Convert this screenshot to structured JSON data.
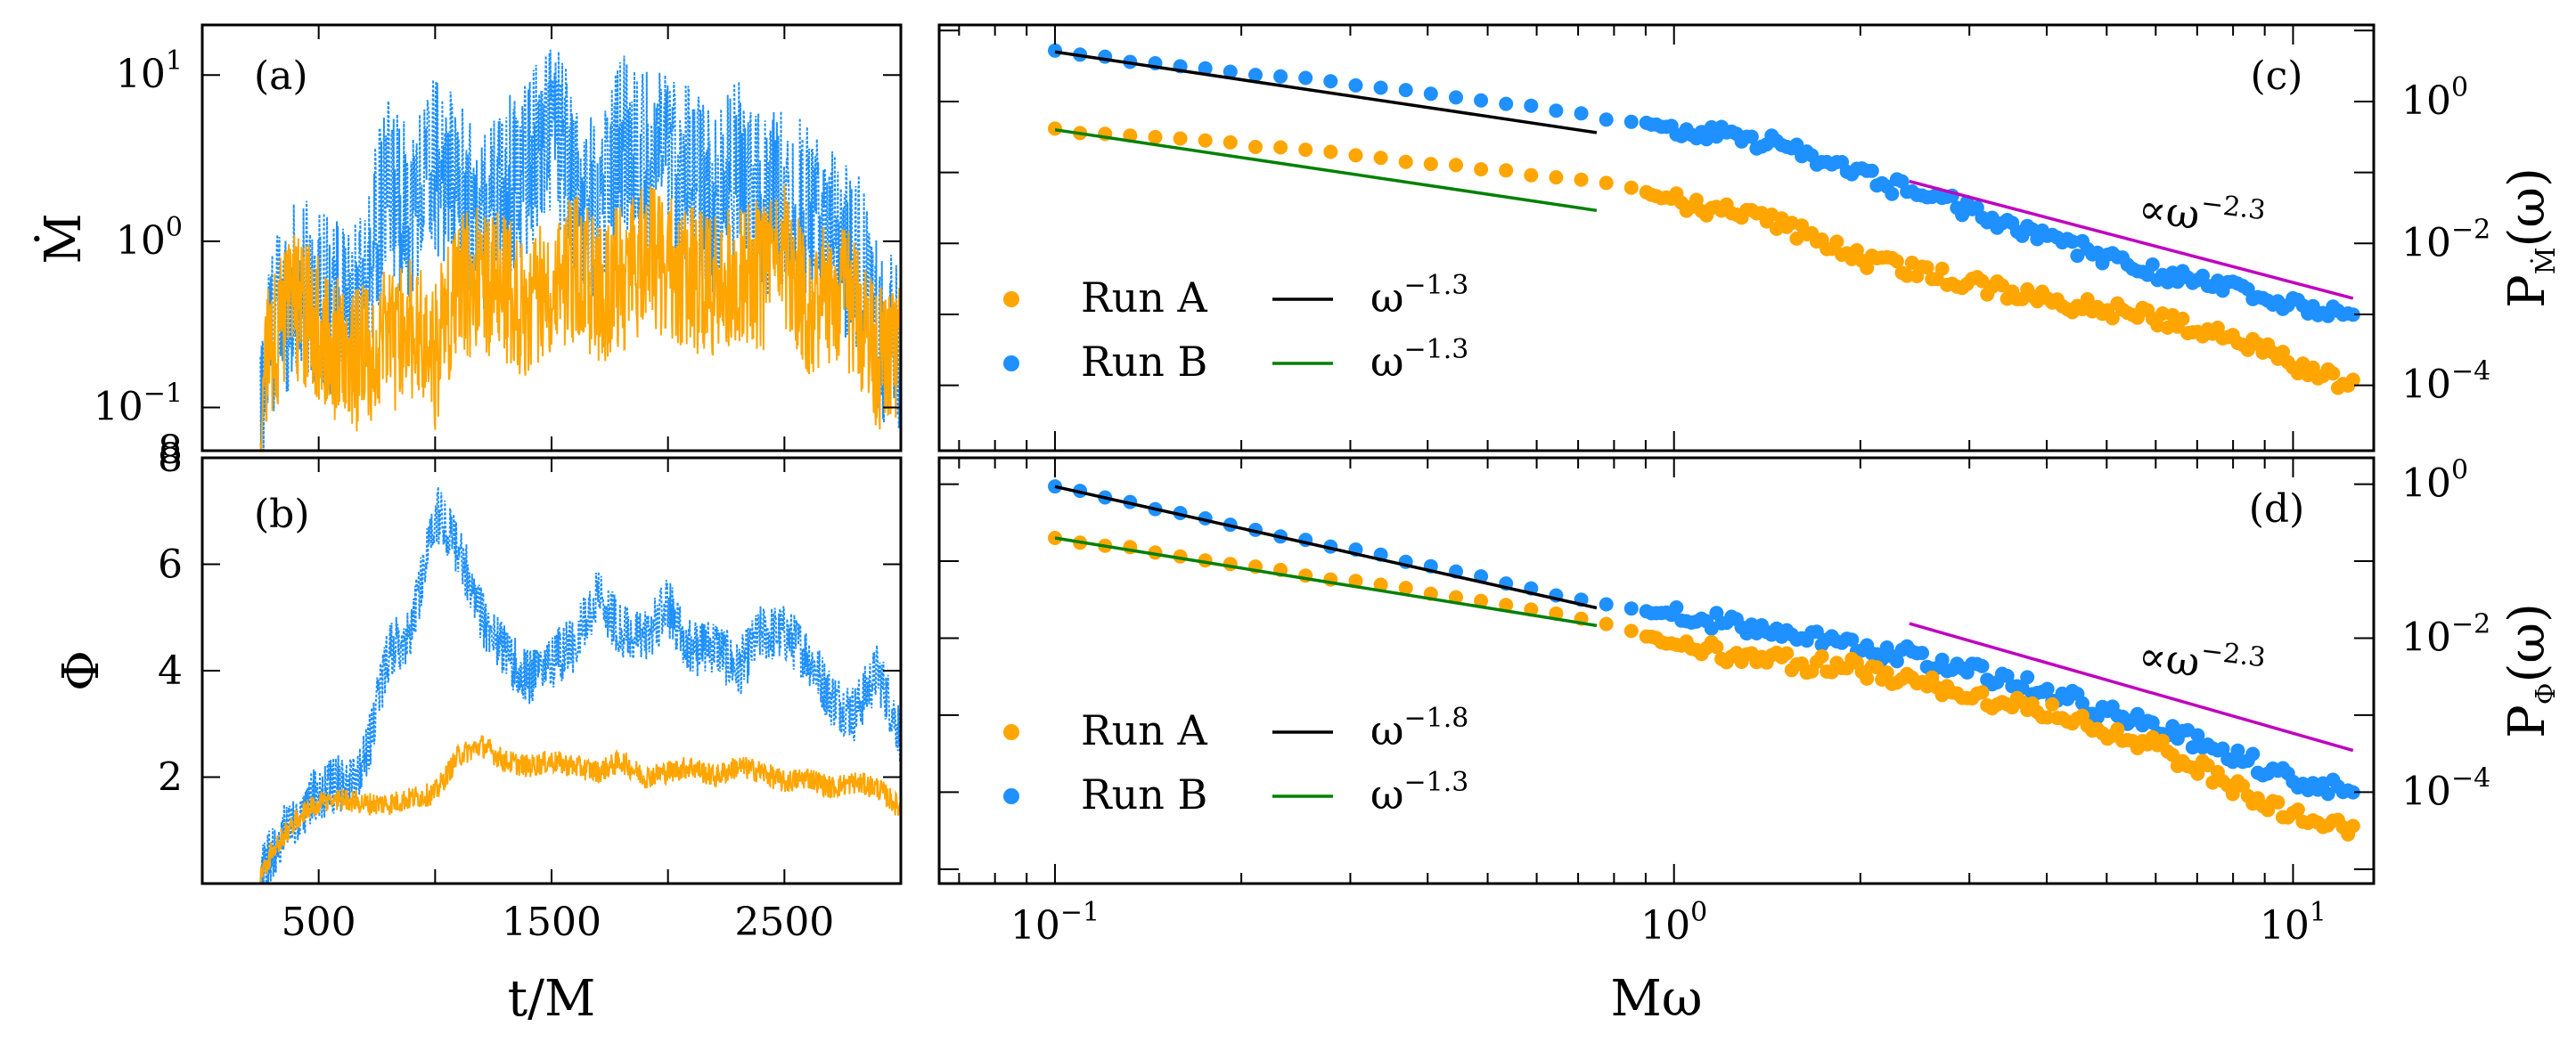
{
  "colors": {
    "run_a": "#FFA500",
    "run_b": "#1E90FF",
    "fit_black": "#000000",
    "fit_green": "#008000",
    "ref_magenta": "#C000C0"
  },
  "chart_data": [
    {
      "id": "a",
      "type": "line",
      "panel_label": "(a)",
      "ylabel": "Ṁ",
      "xlabel": "",
      "yscale": "log",
      "xlim": [
        0,
        3000
      ],
      "ylim": [
        0.055,
        20
      ],
      "y_tick_labels": [
        "10^1",
        "10^0",
        "10^-1",
        "8"
      ],
      "series": [
        {
          "color": "#1E90FF",
          "style": "dotted",
          "x": [
            250,
            300,
            400,
            500,
            600,
            700,
            800,
            900,
            1000,
            1100,
            1200,
            1300,
            1400,
            1500,
            1600,
            1700,
            1800,
            1900,
            2000,
            2100,
            2200,
            2300,
            2400,
            2500,
            2600,
            2700,
            2800,
            2900,
            3000
          ],
          "values": [
            0.08,
            0.3,
            0.5,
            0.5,
            0.35,
            0.4,
            2.0,
            1.5,
            3.0,
            2.0,
            1.2,
            2.0,
            3.0,
            5.0,
            2.0,
            1.5,
            4.0,
            3.0,
            3.0,
            2.5,
            1.5,
            3.0,
            1.5,
            2.0,
            1.5,
            1.0,
            0.8,
            0.3,
            0.2
          ]
        },
        {
          "color": "#FFA500",
          "style": "solid",
          "x": [
            250,
            300,
            400,
            500,
            600,
            700,
            800,
            900,
            1000,
            1100,
            1200,
            1300,
            1400,
            1500,
            1600,
            1700,
            1800,
            1900,
            2000,
            2100,
            2200,
            2300,
            2400,
            2500,
            2600,
            2700,
            2800,
            2900,
            3000
          ],
          "values": [
            0.07,
            0.25,
            0.4,
            0.3,
            0.2,
            0.2,
            0.25,
            0.3,
            0.2,
            0.5,
            0.6,
            0.5,
            0.4,
            0.6,
            0.7,
            0.5,
            0.6,
            0.8,
            0.7,
            0.6,
            0.5,
            0.7,
            0.6,
            0.8,
            0.4,
            0.5,
            0.4,
            0.2,
            0.2
          ]
        }
      ]
    },
    {
      "id": "b",
      "type": "line",
      "panel_label": "(b)",
      "ylabel": "Φ",
      "xlabel": "t/M",
      "xlim": [
        0,
        3000
      ],
      "ylim": [
        0,
        8
      ],
      "x_ticks": [
        500,
        1500,
        2500
      ],
      "y_ticks": [
        2,
        4,
        6,
        8
      ],
      "series": [
        {
          "color": "#1E90FF",
          "style": "dotted",
          "x": [
            250,
            300,
            400,
            500,
            600,
            700,
            800,
            900,
            1000,
            1100,
            1200,
            1300,
            1400,
            1500,
            1600,
            1700,
            1800,
            1900,
            2000,
            2100,
            2200,
            2300,
            2400,
            2500,
            2600,
            2700,
            2800,
            2900,
            3000
          ],
          "values": [
            0.1,
            0.6,
            1.3,
            1.7,
            1.9,
            2.3,
            4.3,
            4.8,
            7.0,
            6.3,
            5.0,
            4.3,
            3.9,
            4.2,
            4.5,
            5.5,
            4.7,
            4.6,
            5.2,
            4.4,
            4.5,
            4.0,
            4.7,
            4.7,
            4.3,
            3.5,
            3.2,
            4.0,
            2.8
          ]
        },
        {
          "color": "#FFA500",
          "style": "solid",
          "x": [
            250,
            300,
            400,
            500,
            600,
            700,
            800,
            900,
            1000,
            1100,
            1200,
            1300,
            1400,
            1500,
            1600,
            1700,
            1800,
            1900,
            2000,
            2100,
            2200,
            2300,
            2400,
            2500,
            2600,
            2700,
            2800,
            2900,
            3000
          ],
          "values": [
            0.1,
            0.6,
            1.2,
            1.5,
            1.6,
            1.5,
            1.5,
            1.6,
            1.7,
            2.4,
            2.6,
            2.3,
            2.2,
            2.3,
            2.2,
            2.1,
            2.3,
            2.0,
            2.1,
            2.2,
            2.0,
            2.2,
            2.1,
            1.9,
            2.0,
            1.8,
            1.9,
            1.8,
            1.4
          ]
        }
      ]
    },
    {
      "id": "c",
      "type": "scatter",
      "panel_label": "(c)",
      "ylabel": "P_Ṁ(ω)",
      "xlabel": "",
      "xscale": "log",
      "yscale": "log",
      "xlim": [
        0.065,
        13.5
      ],
      "ylim": [
        1.2e-05,
        12
      ],
      "y_tick_labels": [
        "10^0",
        "10^-2",
        "10^-4"
      ],
      "series": [
        {
          "name": "Run B",
          "color": "#1E90FF",
          "x": [
            0.1,
            0.15,
            0.2,
            0.3,
            0.5,
            0.8,
            1.0,
            1.5,
            2.0,
            3.0,
            4.0,
            6.0,
            8.0,
            10.0,
            12.5
          ],
          "values": [
            5.0,
            3.3,
            2.6,
            1.75,
            1.05,
            0.55,
            0.43,
            0.24,
            0.09,
            0.03,
            0.012,
            0.004,
            0.0022,
            0.0014,
            0.001
          ]
        },
        {
          "name": "Run A",
          "color": "#FFA500",
          "x": [
            0.1,
            0.15,
            0.2,
            0.3,
            0.5,
            0.8,
            1.0,
            1.5,
            2.0,
            3.0,
            4.0,
            6.0,
            8.0,
            10.0,
            12.5
          ],
          "values": [
            0.4,
            0.3,
            0.25,
            0.18,
            0.11,
            0.068,
            0.04,
            0.018,
            0.006,
            0.0028,
            0.0016,
            0.0009,
            0.0005,
            0.0002,
            0.0001
          ]
        }
      ],
      "fits": [
        {
          "label": "ω^-1.3",
          "exponent": "-1.3",
          "color": "#000000",
          "x_range": [
            0.1,
            0.75
          ],
          "y_start": 5.0
        },
        {
          "label": "ω^-1.3",
          "exponent": "-1.3",
          "color": "#008000",
          "x_range": [
            0.1,
            0.75
          ],
          "y_start": 0.4
        }
      ],
      "reference": {
        "label": "∝ω^-2.3",
        "exponent": "-2.3",
        "color": "#C000C0",
        "x_range": [
          2.4,
          12.5
        ],
        "y_start": 0.075
      },
      "legend": {
        "placement": "lower-left",
        "entries": [
          "Run A",
          "Run B"
        ],
        "fit_labels": [
          "ω^-1.3",
          "ω^-1.3"
        ]
      }
    },
    {
      "id": "d",
      "type": "scatter",
      "panel_label": "(d)",
      "ylabel": "P_Φ(ω)",
      "xlabel": "Mω",
      "xscale": "log",
      "yscale": "log",
      "xlim": [
        0.065,
        13.5
      ],
      "ylim": [
        6.5e-06,
        2.2
      ],
      "x_tick_labels": [
        "10^-1",
        "10^0",
        "10^1"
      ],
      "y_tick_labels": [
        "10^0",
        "10^-2",
        "10^-4"
      ],
      "series": [
        {
          "name": "Run B",
          "color": "#1E90FF",
          "x": [
            0.1,
            0.15,
            0.2,
            0.3,
            0.5,
            0.8,
            1.0,
            1.5,
            2.0,
            3.0,
            4.0,
            6.0,
            8.0,
            10.0,
            12.5
          ],
          "values": [
            0.93,
            0.45,
            0.28,
            0.14,
            0.06,
            0.025,
            0.02,
            0.012,
            0.008,
            0.004,
            0.002,
            0.0007,
            0.0003,
            0.00015,
            0.0001
          ]
        },
        {
          "name": "Run A",
          "color": "#FFA500",
          "x": [
            0.1,
            0.15,
            0.2,
            0.3,
            0.5,
            0.8,
            1.0,
            1.5,
            2.0,
            3.0,
            4.0,
            6.0,
            8.0,
            10.0,
            12.5
          ],
          "values": [
            0.2,
            0.13,
            0.09,
            0.055,
            0.03,
            0.015,
            0.008,
            0.005,
            0.004,
            0.0018,
            0.0012,
            0.0004,
            0.00012,
            5e-05,
            3e-05
          ]
        }
      ],
      "fits": [
        {
          "label": "ω^-1.8",
          "exponent": "-1.8",
          "color": "#000000",
          "x_range": [
            0.1,
            0.75
          ],
          "y_start": 0.93
        },
        {
          "label": "ω^-1.3",
          "exponent": "-1.3",
          "color": "#008000",
          "x_range": [
            0.1,
            0.75
          ],
          "y_start": 0.2
        }
      ],
      "reference": {
        "label": "∝ω^-2.3",
        "exponent": "-2.3",
        "color": "#C000C0",
        "x_range": [
          2.4,
          12.5
        ],
        "y_start": 0.0155
      },
      "legend": {
        "placement": "lower-left",
        "entries": [
          "Run A",
          "Run B"
        ],
        "fit_labels": [
          "ω^-1.8",
          "ω^-1.3"
        ]
      }
    }
  ]
}
